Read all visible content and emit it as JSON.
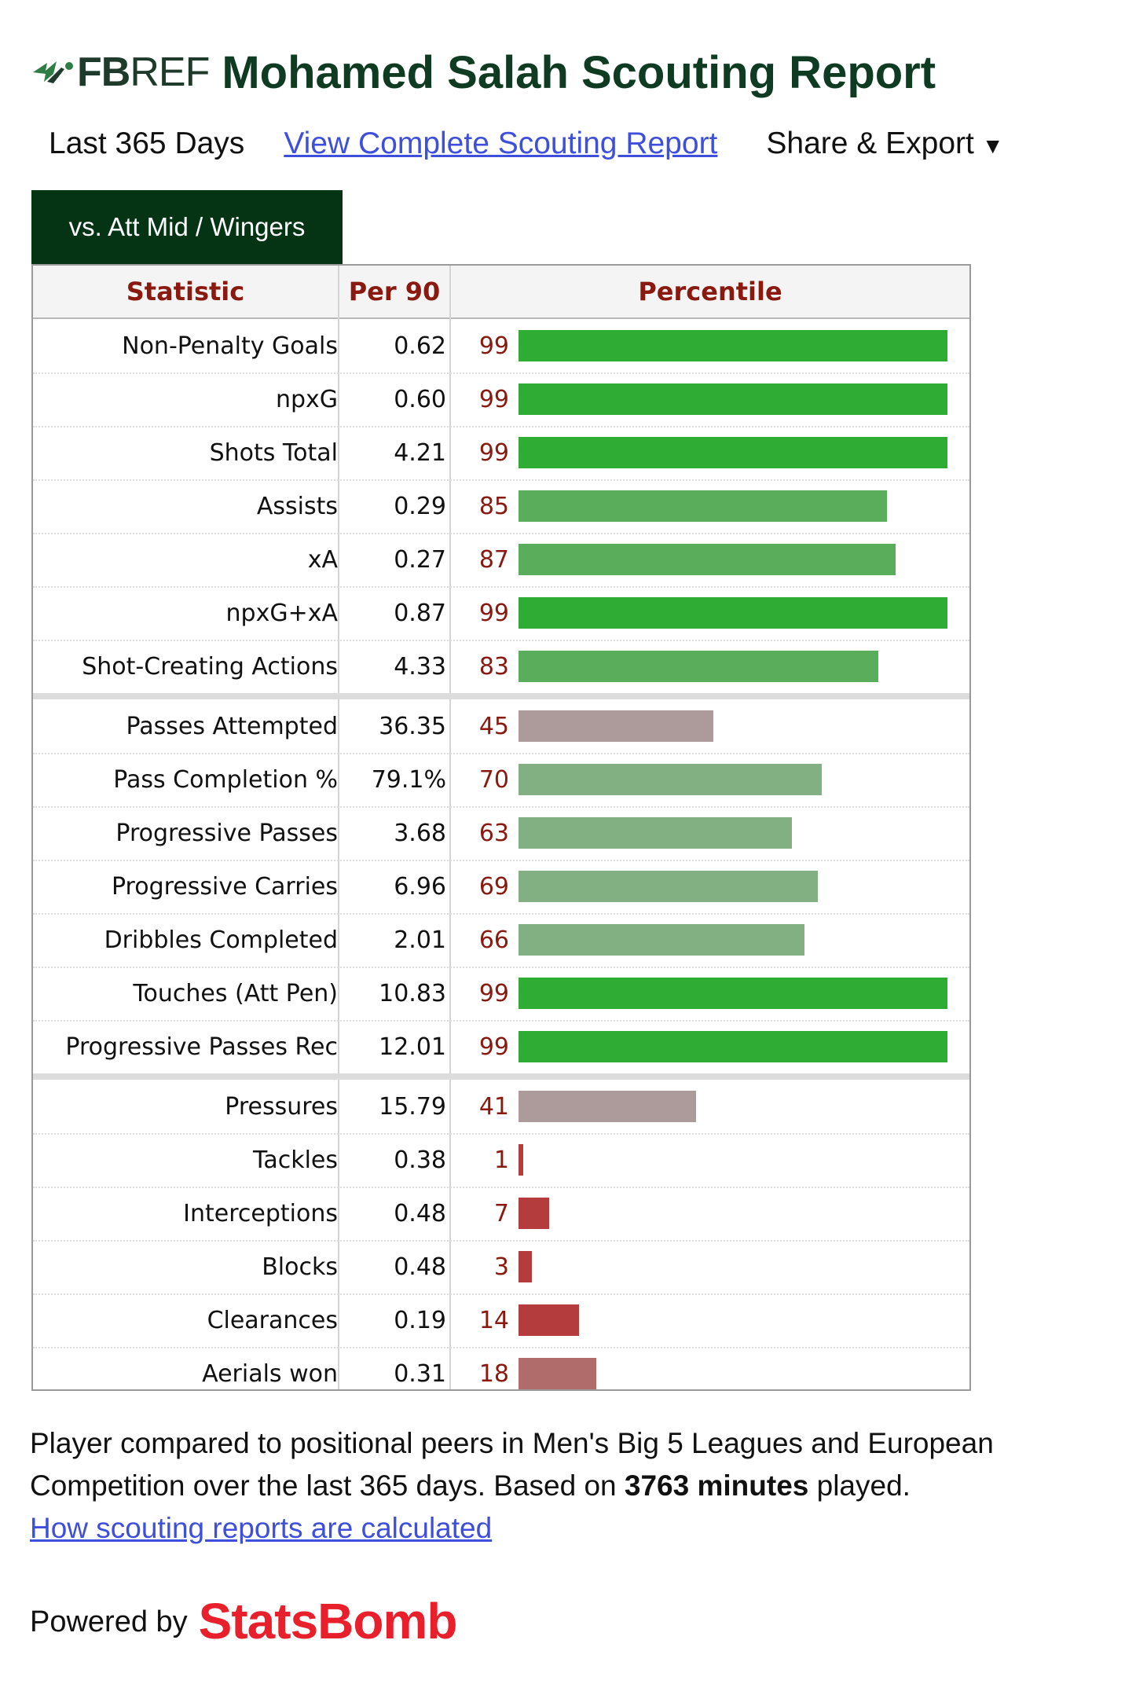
{
  "header": {
    "logo_fb": "FB",
    "logo_ref": "REF",
    "title": "Mohamed Salah Scouting Report"
  },
  "subbar": {
    "period": "Last 365 Days",
    "link_label": "View Complete Scouting Report",
    "share_label": "Share & Export",
    "share_caret": "▼"
  },
  "tab": {
    "label": "vs. Att Mid / Wingers"
  },
  "colors": {
    "elite": "#2fac34",
    "good": "#5aad5a",
    "above_avg": "#82b083",
    "average": "#ad9b9b",
    "below_avg": "#b06b6b",
    "poor": "#b43c3c",
    "tab_bg": "#053415",
    "header_text": "#8a1a10"
  },
  "chart_data": {
    "type": "bar",
    "orientation": "horizontal",
    "title": "Mohamed Salah Scouting Report",
    "columns": [
      "Statistic",
      "Per 90",
      "Percentile"
    ],
    "xlim": [
      0,
      100
    ],
    "groups": [
      {
        "rows": [
          {
            "statistic": "Non-Penalty Goals",
            "per90": "0.62",
            "percentile": 99
          },
          {
            "statistic": "npxG",
            "per90": "0.60",
            "percentile": 99
          },
          {
            "statistic": "Shots Total",
            "per90": "4.21",
            "percentile": 99
          },
          {
            "statistic": "Assists",
            "per90": "0.29",
            "percentile": 85
          },
          {
            "statistic": "xA",
            "per90": "0.27",
            "percentile": 87
          },
          {
            "statistic": "npxG+xA",
            "per90": "0.87",
            "percentile": 99
          },
          {
            "statistic": "Shot-Creating Actions",
            "per90": "4.33",
            "percentile": 83
          }
        ]
      },
      {
        "rows": [
          {
            "statistic": "Passes Attempted",
            "per90": "36.35",
            "percentile": 45
          },
          {
            "statistic": "Pass Completion %",
            "per90": "79.1%",
            "percentile": 70
          },
          {
            "statistic": "Progressive Passes",
            "per90": "3.68",
            "percentile": 63
          },
          {
            "statistic": "Progressive Carries",
            "per90": "6.96",
            "percentile": 69
          },
          {
            "statistic": "Dribbles Completed",
            "per90": "2.01",
            "percentile": 66
          },
          {
            "statistic": "Touches (Att Pen)",
            "per90": "10.83",
            "percentile": 99
          },
          {
            "statistic": "Progressive Passes Rec",
            "per90": "12.01",
            "percentile": 99
          }
        ]
      },
      {
        "rows": [
          {
            "statistic": "Pressures",
            "per90": "15.79",
            "percentile": 41
          },
          {
            "statistic": "Tackles",
            "per90": "0.38",
            "percentile": 1
          },
          {
            "statistic": "Interceptions",
            "per90": "0.48",
            "percentile": 7
          },
          {
            "statistic": "Blocks",
            "per90": "0.48",
            "percentile": 3
          },
          {
            "statistic": "Clearances",
            "per90": "0.19",
            "percentile": 14
          },
          {
            "statistic": "Aerials won",
            "per90": "0.31",
            "percentile": 18
          }
        ]
      }
    ]
  },
  "footer": {
    "text_before": "Player compared to positional peers in Men's Big 5 Leagues and European Competition over the last 365 days. Based on ",
    "minutes_bold": "3763 minutes",
    "text_after": " played.",
    "how_link": "How scouting reports are calculated",
    "powered_by": "Powered by",
    "brand": "StatsBomb"
  }
}
